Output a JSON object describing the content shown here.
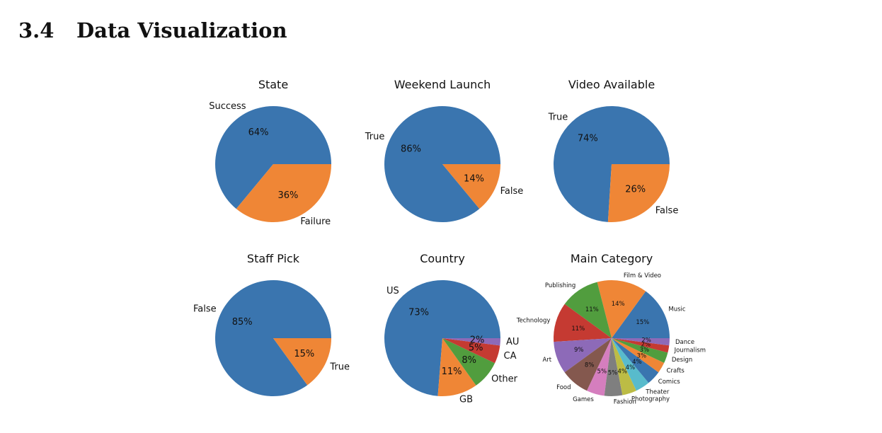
{
  "section": {
    "number": "3.4",
    "title": "Data Visualization"
  },
  "colors": [
    "#3a75af",
    "#ef8636",
    "#519d3e",
    "#c53a32",
    "#8d6ab8",
    "#84584e",
    "#d57ebe",
    "#7f7f7f",
    "#bcbc45",
    "#58bbcc"
  ],
  "chart_data": [
    {
      "type": "pie",
      "title": "State",
      "labels": [
        "Success",
        "Failure"
      ],
      "values": [
        64,
        36
      ],
      "value_labels": [
        "64%",
        "36%"
      ]
    },
    {
      "type": "pie",
      "title": "Weekend Launch",
      "labels": [
        "True",
        "False"
      ],
      "values": [
        86,
        14
      ],
      "value_labels": [
        "86%",
        "14%"
      ]
    },
    {
      "type": "pie",
      "title": "Video Available",
      "labels": [
        "True",
        "False"
      ],
      "values": [
        74,
        26
      ],
      "value_labels": [
        "74%",
        "26%"
      ]
    },
    {
      "type": "pie",
      "title": "Staff Pick",
      "labels": [
        "False",
        "True"
      ],
      "values": [
        85,
        15
      ],
      "value_labels": [
        "85%",
        "15%"
      ]
    },
    {
      "type": "pie",
      "title": "Country",
      "labels": [
        "US",
        "GB",
        "Other",
        "CA",
        "AU"
      ],
      "values": [
        73,
        11,
        8,
        5,
        2
      ],
      "value_labels": [
        "73%",
        "11%",
        "8%",
        "5%",
        "2%"
      ]
    },
    {
      "type": "pie",
      "title": "Main Category",
      "labels": [
        "Music",
        "Film & Video",
        "Publishing",
        "Technology",
        "Art",
        "Food",
        "Games",
        "Fashion",
        "Photography",
        "Theater",
        "Comics",
        "Crafts",
        "Design",
        "Journalism",
        "Dance"
      ],
      "values": [
        15,
        14,
        11,
        11,
        9,
        8,
        5,
        5,
        4,
        4,
        4,
        3,
        3,
        2,
        2
      ],
      "value_labels": [
        "15%",
        "14%",
        "11%",
        "11%",
        "9%",
        "8%",
        "5%",
        "5%",
        "4%",
        "4%",
        "4%",
        "3%",
        "3%",
        "2%",
        "2%"
      ]
    }
  ]
}
